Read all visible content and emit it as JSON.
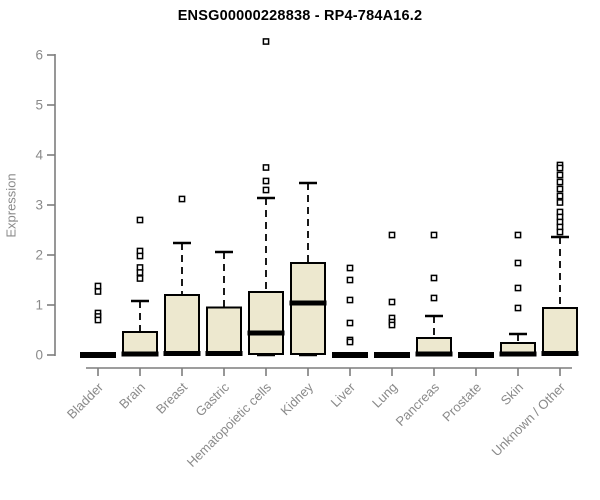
{
  "title": "ENSG00000228838 - RP4-784A16.2",
  "colors": {
    "box_fill": "#EDE8CF",
    "box_border": "#000000",
    "median": "#000000",
    "axis": "#7d7d7d",
    "tick_text": "#8a8a8a",
    "title_text": "#000000",
    "outlier_fill": "#ffffff",
    "background": "#ffffff"
  },
  "chart_data": {
    "type": "boxplot",
    "title": "ENSG00000228838 - RP4-784A16.2",
    "xlabel": "",
    "ylabel": "Expression",
    "ylim": [
      0,
      6.35
    ],
    "yticks": [
      0,
      1,
      2,
      3,
      4,
      5,
      6
    ],
    "grid": false,
    "legend": false,
    "categories": [
      "Bladder",
      "Brain",
      "Breast",
      "Gastric",
      "Hematopoietic cells",
      "Kidney",
      "Liver",
      "Lung",
      "Pancreas",
      "Prostate",
      "Skin",
      "Unknown / Other"
    ],
    "boxes": [
      {
        "category": "Bladder",
        "whisker_low": 0,
        "q1": 0,
        "median": 0,
        "q3": 0,
        "whisker_high": 0,
        "outliers": [
          1.38,
          1.27,
          0.84,
          0.77,
          0.7
        ]
      },
      {
        "category": "Brain",
        "whisker_low": 0,
        "q1": 0,
        "median": 0.02,
        "q3": 0.46,
        "whisker_high": 1.08,
        "outliers": [
          2.7,
          2.08,
          1.98,
          1.75,
          1.65,
          1.53
        ]
      },
      {
        "category": "Breast",
        "whisker_low": 0,
        "q1": 0,
        "median": 0.03,
        "q3": 1.2,
        "whisker_high": 2.24,
        "outliers": [
          3.12
        ]
      },
      {
        "category": "Gastric",
        "whisker_low": 0,
        "q1": 0,
        "median": 0.03,
        "q3": 0.95,
        "whisker_high": 2.06,
        "outliers": []
      },
      {
        "category": "Hematopoietic cells",
        "whisker_low": 0,
        "q1": 0.02,
        "median": 0.44,
        "q3": 1.26,
        "whisker_high": 3.14,
        "outliers": [
          6.27,
          3.75,
          3.48,
          3.3
        ]
      },
      {
        "category": "Kidney",
        "whisker_low": 0,
        "q1": 0.02,
        "median": 1.04,
        "q3": 1.84,
        "whisker_high": 3.44,
        "outliers": []
      },
      {
        "category": "Liver",
        "whisker_low": 0,
        "q1": 0,
        "median": 0,
        "q3": 0,
        "whisker_high": 0,
        "outliers": [
          1.74,
          1.5,
          1.1,
          0.64,
          0.3,
          0.26
        ]
      },
      {
        "category": "Lung",
        "whisker_low": 0,
        "q1": 0,
        "median": 0,
        "q3": 0,
        "whisker_high": 0,
        "outliers": [
          2.4,
          1.06,
          0.74,
          0.66,
          0.6
        ]
      },
      {
        "category": "Pancreas",
        "whisker_low": 0,
        "q1": 0,
        "median": 0.02,
        "q3": 0.34,
        "whisker_high": 0.78,
        "outliers": [
          2.4,
          1.54,
          1.14
        ]
      },
      {
        "category": "Prostate",
        "whisker_low": 0,
        "q1": 0,
        "median": 0,
        "q3": 0,
        "whisker_high": 0,
        "outliers": []
      },
      {
        "category": "Skin",
        "whisker_low": 0,
        "q1": 0,
        "median": 0.02,
        "q3": 0.24,
        "whisker_high": 0.42,
        "outliers": [
          2.4,
          1.84,
          1.34,
          0.94
        ]
      },
      {
        "category": "Unknown / Other",
        "whisker_low": 0,
        "q1": 0,
        "median": 0.03,
        "q3": 0.94,
        "whisker_high": 2.36,
        "outliers": [
          3.8,
          3.74,
          3.6,
          3.46,
          3.32,
          3.18,
          3.05,
          2.86,
          2.76,
          2.66,
          2.56,
          2.46
        ]
      }
    ]
  }
}
